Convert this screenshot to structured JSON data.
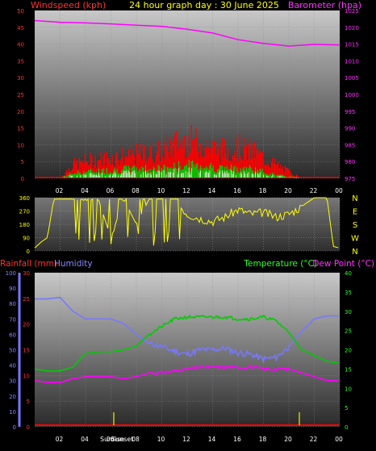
{
  "header": {
    "left_title": "Windspeed (kph)",
    "center_title": "24 hour graph day : 30 June 2025",
    "right_title": "Barometer (hpa)"
  },
  "colors": {
    "wind_gust": "#ff0000",
    "wind_avg": "#00cc00",
    "wind_hilite": "#ffffff",
    "barometer": "#ff00ff",
    "direction": "#ffff00",
    "humidity": "#7777ff",
    "temperature": "#00cc00",
    "dewpoint": "#ff00ff",
    "rain": "#ff0000",
    "sun_marker": "#cccc00",
    "title_red": "#ff3333",
    "title_yellow": "#ffff00",
    "title_mag": "#ff33ff",
    "title_green": "#33ff33",
    "title_blue": "#8888ff"
  },
  "x_ticks": [
    "02",
    "04",
    "06",
    "08",
    "10",
    "12",
    "14",
    "16",
    "18",
    "20",
    "22",
    "00"
  ],
  "wind_panel": {
    "left_ticks": [
      "0",
      "5",
      "10",
      "15",
      "20",
      "25",
      "30",
      "35",
      "40",
      "45",
      "50"
    ],
    "right_ticks": [
      "975",
      "980",
      "985",
      "990",
      "995",
      "1000",
      "1005",
      "1010",
      "1015",
      "1020",
      "1025"
    ]
  },
  "direction_panel": {
    "left_ticks": [
      "0",
      "90",
      "180",
      "270",
      "360"
    ],
    "compass": [
      "N",
      "W",
      "S",
      "E",
      "N"
    ]
  },
  "climate_panel": {
    "rain_label": "Rainfall (mm)",
    "humidity_label": "Humidity",
    "temp_label": "Temperature (°C)",
    "dew_label": "Dew Point (°C)",
    "humidity_ticks": [
      "0",
      "10",
      "20",
      "30",
      "40",
      "50",
      "60",
      "70",
      "80",
      "90",
      "100"
    ],
    "rain_ticks": [
      "0",
      "5",
      "10",
      "15",
      "20",
      "25",
      "30"
    ],
    "temp_ticks": [
      "0",
      "5",
      "10",
      "15",
      "20",
      "25",
      "30",
      "35",
      "40"
    ],
    "sunrise_label": "Sunrise",
    "sunset_label": "Sunset"
  },
  "chart_data": [
    {
      "type": "line",
      "title": "Windspeed (kph) / Barometer (hpa)",
      "series": [
        {
          "name": "Barometer (hpa)",
          "axis": "right",
          "x": [
            0,
            2,
            4,
            6,
            8,
            10,
            12,
            14,
            16,
            18,
            20,
            22,
            24
          ],
          "values": [
            1022,
            1021.5,
            1021.3,
            1021,
            1020.6,
            1020.3,
            1019.4,
            1018.3,
            1016.3,
            1015.2,
            1014.4,
            1014.9,
            1014.7
          ]
        },
        {
          "name": "Wind gust (kph)",
          "axis": "left",
          "x": [
            0,
            2,
            3,
            4,
            6,
            8,
            10,
            11,
            12,
            13,
            14,
            15,
            16,
            17,
            18,
            19,
            20,
            21,
            22,
            24
          ],
          "values": [
            0,
            0,
            4,
            5,
            6,
            7,
            8,
            10,
            11,
            10,
            9,
            8,
            9,
            8,
            6,
            4,
            2,
            0,
            0,
            0
          ]
        },
        {
          "name": "Wind average (kph)",
          "axis": "left",
          "x": [
            0,
            2,
            3,
            4,
            6,
            8,
            10,
            11,
            12,
            13,
            14,
            15,
            16,
            17,
            18,
            19,
            20,
            21,
            22,
            24
          ],
          "values": [
            0,
            0,
            1.5,
            2,
            2.5,
            3,
            3,
            3.5,
            4,
            4,
            3.5,
            3,
            3,
            3,
            2,
            1,
            0.5,
            0,
            0,
            0
          ]
        }
      ],
      "ylim_left": [
        0,
        50
      ],
      "ylim_right": [
        975,
        1025
      ]
    },
    {
      "type": "line",
      "title": "Wind direction",
      "series": [
        {
          "name": "Direction (deg)",
          "x": [
            0,
            0.5,
            1,
            1.5,
            2,
            2.5,
            3,
            4,
            5,
            6,
            7,
            8,
            9,
            10,
            11,
            12,
            13,
            14,
            15,
            16,
            17,
            18,
            19,
            20,
            21,
            22,
            23,
            23.5,
            24
          ],
          "values": [
            20,
            60,
            90,
            350,
            350,
            350,
            350,
            340,
            350,
            90,
            350,
            180,
            350,
            350,
            350,
            250,
            220,
            200,
            230,
            280,
            250,
            260,
            230,
            250,
            300,
            360,
            360,
            30,
            20
          ]
        }
      ],
      "ylim": [
        0,
        360
      ]
    },
    {
      "type": "line",
      "title": "Rainfall / Humidity / Temperature / Dew Point",
      "series": [
        {
          "name": "Humidity",
          "axis": "humidity",
          "x": [
            0,
            1,
            2,
            3,
            4,
            5,
            6,
            7,
            8,
            9,
            10,
            11,
            12,
            13,
            14,
            15,
            16,
            17,
            18,
            19,
            20,
            21,
            22,
            23,
            24
          ],
          "values": [
            83,
            83,
            84,
            75,
            70,
            70,
            70,
            67,
            60,
            54,
            52,
            49,
            47,
            50,
            50,
            51,
            48,
            47,
            44,
            45,
            52,
            62,
            70,
            72,
            72
          ]
        },
        {
          "name": "Temperature (°C)",
          "axis": "temp",
          "x": [
            0,
            1,
            2,
            3,
            4,
            5,
            6,
            7,
            8,
            9,
            10,
            11,
            12,
            13,
            14,
            15,
            16,
            17,
            18,
            19,
            20,
            21,
            22,
            23,
            24
          ],
          "values": [
            15,
            14.5,
            14.5,
            15.5,
            19,
            19.5,
            19.5,
            20,
            21,
            24,
            26,
            28,
            28.5,
            28.5,
            28.5,
            28.5,
            28,
            28,
            28.5,
            27.5,
            24.5,
            20,
            18.5,
            17,
            16.5
          ]
        },
        {
          "name": "Dew Point (°C)",
          "axis": "temp",
          "x": [
            0,
            1,
            2,
            3,
            4,
            5,
            6,
            7,
            8,
            9,
            10,
            11,
            12,
            13,
            14,
            15,
            16,
            17,
            18,
            19,
            20,
            21,
            22,
            23,
            24
          ],
          "values": [
            12,
            11.5,
            11.5,
            12.5,
            13,
            13,
            13,
            12.5,
            13,
            14,
            14,
            14.5,
            15,
            15.5,
            15.5,
            15.5,
            15.5,
            15.5,
            15,
            15,
            15,
            14,
            13,
            12,
            12
          ]
        },
        {
          "name": "Rainfall (mm)",
          "axis": "rain",
          "x": [
            0,
            24
          ],
          "values": [
            0,
            0
          ]
        }
      ],
      "ylim_humidity": [
        0,
        100
      ],
      "ylim_temp": [
        0,
        40
      ],
      "ylim_rain": [
        0,
        30
      ]
    }
  ]
}
